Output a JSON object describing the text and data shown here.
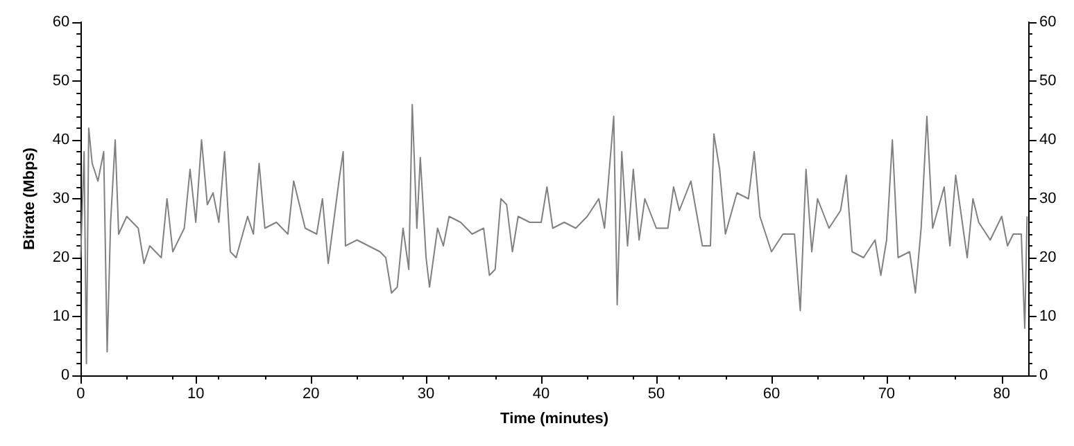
{
  "chart_data": {
    "type": "line",
    "xlabel": "Time (minutes)",
    "ylabel": "Bitrate (Mbps)",
    "xlim": [
      0,
      82.3
    ],
    "xticks": [
      0,
      10,
      20,
      30,
      40,
      50,
      60,
      70,
      80
    ],
    "ylim": [
      0,
      60
    ],
    "yticks": [
      0,
      10,
      20,
      30,
      40,
      50,
      60
    ],
    "y2lim": [
      0,
      60
    ],
    "y2ticks": [
      0,
      10,
      20,
      30,
      40,
      50,
      60
    ],
    "grid": false,
    "marker": "none",
    "line_style": "solid",
    "x": [
      0,
      0.3,
      0.5,
      0.7,
      1,
      1.5,
      2,
      2.3,
      2.6,
      3,
      3.3,
      4,
      5,
      5.5,
      6,
      7,
      7.5,
      8,
      9,
      9.5,
      10,
      10.5,
      11,
      11.5,
      12,
      12.5,
      13,
      13.5,
      14.5,
      15,
      15.5,
      16,
      17,
      18,
      18.5,
      19.5,
      20.5,
      21,
      21.5,
      22.5,
      22.8,
      23,
      24,
      25,
      26,
      26.5,
      27,
      27.5,
      28,
      28.5,
      28.8,
      29.2,
      29.5,
      30,
      30.3,
      31,
      31.5,
      32,
      33,
      34,
      35,
      35.5,
      36,
      36.5,
      37,
      37.5,
      38,
      39,
      40,
      40.5,
      41,
      42,
      43,
      44,
      45,
      45.5,
      46.3,
      46.6,
      47,
      47.5,
      48,
      48.5,
      49,
      50,
      51,
      51.5,
      52,
      53,
      54,
      54.7,
      55,
      55.5,
      56,
      57,
      58,
      58.5,
      59,
      60,
      61,
      62,
      62.5,
      63,
      63.5,
      64,
      65,
      66,
      66.5,
      67,
      68,
      69,
      69.5,
      70,
      70.5,
      71,
      72,
      72.5,
      73,
      73.5,
      74,
      75,
      75.5,
      76,
      77,
      77.5,
      78,
      79,
      80,
      80.5,
      81,
      81.7,
      82,
      82.2
    ],
    "series": [
      {
        "color": "#808080",
        "values": [
          20,
          38,
          2,
          42,
          36,
          33,
          38,
          4,
          26,
          40,
          24,
          27,
          25,
          19,
          22,
          20,
          30,
          21,
          25,
          35,
          26,
          40,
          29,
          31,
          26,
          38,
          21,
          20,
          27,
          24,
          36,
          25,
          26,
          24,
          33,
          25,
          24,
          30,
          19,
          34,
          38,
          22,
          23,
          22,
          21,
          20,
          14,
          15,
          25,
          18,
          46,
          25,
          37,
          20,
          15,
          25,
          22,
          27,
          26,
          24,
          25,
          17,
          18,
          30,
          29,
          21,
          27,
          26,
          26,
          32,
          25,
          26,
          25,
          27,
          30,
          25,
          44,
          12,
          38,
          22,
          35,
          23,
          30,
          25,
          25,
          32,
          28,
          33,
          22,
          22,
          41,
          35,
          24,
          31,
          30,
          38,
          27,
          21,
          24,
          24,
          11,
          35,
          21,
          30,
          25,
          28,
          34,
          21,
          20,
          23,
          17,
          23,
          40,
          20,
          21,
          14,
          25,
          44,
          25,
          32,
          22,
          34,
          20,
          30,
          26,
          23,
          27,
          22,
          24,
          24,
          8,
          27
        ]
      }
    ]
  }
}
